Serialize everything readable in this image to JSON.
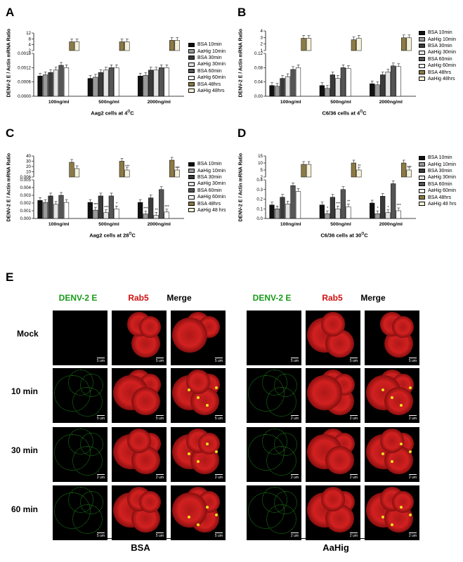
{
  "panels": {
    "A": {
      "letter": "A",
      "ylabel": "DENV-2 E / Actin mRNA Ratio",
      "xlabel": "Aag2 cells at 4",
      "xlabel_sup": "O",
      "xlabel_end": "C",
      "upper_ticks": [
        "12",
        "8",
        "4",
        "2"
      ],
      "lower_ticks": [
        "0.0018",
        "0.0012",
        "0.0006",
        "0.0000"
      ],
      "legend": [
        "BSA 10min",
        "AaHig 10min",
        "BSA 30min",
        "AaHig 30min",
        "BSA 60min",
        "AaHig 60min",
        "BSA 48hrs",
        "AaHig 48hrs"
      ]
    },
    "B": {
      "letter": "B",
      "ylabel": "DENV-2 E / Actin mRNA Ratio",
      "xlabel": "C6/36 cells at 4",
      "xlabel_sup": "O",
      "xlabel_end": "C",
      "upper_ticks": [
        "4",
        "3",
        "2",
        "1"
      ],
      "lower_ticks": [
        "0.12",
        "0.08",
        "0.04",
        "0.00"
      ],
      "legend": [
        "BSA 10min",
        "AaHig 10min",
        "BSA 30min",
        "AaHig 30min",
        "BSA 60min",
        "AaHig 60min",
        "BSA 48hrs",
        "AaHig 48hrs"
      ]
    },
    "C": {
      "letter": "C",
      "ylabel": "DENV-2 E / Actin mRNA Ratio",
      "xlabel": "Aag2 cells at 28",
      "xlabel_sup": "O",
      "xlabel_end": "C",
      "upper_ticks": [
        "40",
        "30",
        "20",
        "10",
        "0.006"
      ],
      "lower_ticks": [
        "0.005",
        "0.004",
        "0.003",
        "0.002",
        "0.001",
        "0.000"
      ],
      "legend": [
        "BSA 10min",
        "AaHig 10min",
        "BSA 30min",
        "AaHig 30min",
        "BSA 60min",
        "AaHig 60min",
        "BSA 48hrs",
        "AaHig 48 hrs"
      ]
    },
    "D": {
      "letter": "D",
      "ylabel": "DENV-2 E / Actin mRNA Ratio",
      "xlabel": "C6/36 cells at 30",
      "xlabel_sup": "O",
      "xlabel_end": "C",
      "upper_ticks": [
        "15",
        "10",
        "5",
        "2"
      ],
      "lower_ticks": [
        "0.4",
        "0.3",
        "0.2",
        "0.1",
        "0.0"
      ],
      "legend": [
        "BSA 10min",
        "AaHig 10min",
        "BSA 30min",
        "AaHig 30min",
        "BSA 60min",
        "AaHig 60min",
        "BSA 48hrs",
        "AaHig 48 hrs"
      ]
    },
    "E": {
      "letter": "E"
    }
  },
  "categories": [
    "100ng/ml",
    "500ng/ml",
    "2000ng/ml"
  ],
  "legend_colors": [
    "#111111",
    "#9a9a9a",
    "#3a3a3a",
    "#e4e4e4",
    "#555555",
    "#ffffff",
    "#8c7a45",
    "#f5f0d8"
  ],
  "chart_data": [
    {
      "type": "bar",
      "panel": "A",
      "categories": [
        "100ng/ml",
        "500ng/ml",
        "2000ng/ml"
      ],
      "series": [
        {
          "name": "BSA 10min",
          "values": [
            0.00085,
            0.00075,
            0.00085
          ]
        },
        {
          "name": "AaHig 10min",
          "values": [
            0.0009,
            0.0008,
            0.00088
          ]
        },
        {
          "name": "BSA 30min",
          "values": [
            0.001,
            0.001,
            0.0011
          ]
        },
        {
          "name": "AaHig 30min",
          "values": [
            0.0011,
            0.0011,
            0.0011
          ]
        },
        {
          "name": "BSA 60min",
          "values": [
            0.0013,
            0.0012,
            0.0012
          ]
        },
        {
          "name": "AaHig 60min",
          "values": [
            0.0012,
            0.0012,
            0.0012
          ]
        },
        {
          "name": "BSA 48hrs",
          "values": [
            6,
            6,
            7
          ]
        },
        {
          "name": "AaHig 48hrs",
          "values": [
            6,
            6,
            7
          ]
        }
      ]
    },
    {
      "type": "bar",
      "panel": "B",
      "categories": [
        "100ng/ml",
        "500ng/ml",
        "2000ng/ml"
      ],
      "series": [
        {
          "name": "BSA 10min",
          "values": [
            0.03,
            0.03,
            0.035
          ]
        },
        {
          "name": "AaHig 10min",
          "values": [
            0.028,
            0.022,
            0.032
          ]
        },
        {
          "name": "BSA 30min",
          "values": [
            0.05,
            0.06,
            0.06
          ]
        },
        {
          "name": "AaHig 30min",
          "values": [
            0.055,
            0.05,
            0.068
          ]
        },
        {
          "name": "BSA 60min",
          "values": [
            0.075,
            0.08,
            0.085
          ]
        },
        {
          "name": "AaHig 60min",
          "values": [
            0.08,
            0.078,
            0.083
          ]
        },
        {
          "name": "BSA 48hrs",
          "values": [
            2.5,
            2.2,
            2.6
          ]
        },
        {
          "name": "AaHig 48hrs",
          "values": [
            2.5,
            2.5,
            2.6
          ]
        }
      ]
    },
    {
      "type": "bar",
      "panel": "C",
      "categories": [
        "100ng/ml",
        "500ng/ml",
        "2000ng/ml"
      ],
      "series": [
        {
          "name": "BSA 10min",
          "values": [
            0.0028,
            0.0025,
            0.0025
          ]
        },
        {
          "name": "AaHig 10min",
          "values": [
            0.0025,
            0.0013,
            0.0007
          ]
        },
        {
          "name": "BSA 30min",
          "values": [
            0.0035,
            0.0035,
            0.0032
          ]
        },
        {
          "name": "AaHig 30min",
          "values": [
            0.0022,
            0.0009,
            0.0005
          ]
        },
        {
          "name": "BSA 60min",
          "values": [
            0.0036,
            0.0035,
            0.0045
          ]
        },
        {
          "name": "AaHig 60min",
          "values": [
            0.0025,
            0.0015,
            0.001
          ]
        },
        {
          "name": "BSA 48hrs",
          "values": [
            28,
            30,
            32
          ]
        },
        {
          "name": "AaHig 48 hrs",
          "values": [
            16,
            10,
            7
          ]
        }
      ],
      "annotations": [
        "*",
        "***",
        "*",
        "***",
        "***",
        "**",
        "***",
        "***",
        "***"
      ]
    },
    {
      "type": "bar",
      "panel": "D",
      "categories": [
        "100ng/ml",
        "500ng/ml",
        "2000ng/ml"
      ],
      "series": [
        {
          "name": "BSA 10min",
          "values": [
            0.14,
            0.14,
            0.16
          ]
        },
        {
          "name": "AaHig 10min",
          "values": [
            0.1,
            0.05,
            0.05
          ]
        },
        {
          "name": "BSA 30min",
          "values": [
            0.22,
            0.22,
            0.23
          ]
        },
        {
          "name": "AaHig 30min",
          "values": [
            0.15,
            0.1,
            0.06
          ]
        },
        {
          "name": "BSA 60min",
          "values": [
            0.34,
            0.3,
            0.36
          ]
        },
        {
          "name": "AaHig 60min",
          "values": [
            0.28,
            0.12,
            0.08
          ]
        },
        {
          "name": "BSA 48hrs",
          "values": [
            9,
            10,
            10
          ]
        },
        {
          "name": "AaHig 48 hrs",
          "values": [
            9,
            4,
            3
          ]
        }
      ],
      "annotations": [
        "*",
        "***",
        "**",
        "**",
        "*",
        "*",
        "***",
        "***"
      ]
    }
  ],
  "microscopy": {
    "col_left": [
      "DENV-2 E",
      "Rab5",
      "Merge"
    ],
    "col_right": [
      "DENV-2 E",
      "Rab5",
      "Merge"
    ],
    "col_colors": [
      "#1a9a1a",
      "#d01010",
      "#000000"
    ],
    "rows": [
      "Mock",
      "10 min",
      "30 min",
      "60 min"
    ],
    "scale_left": [
      "5 um",
      "5 um",
      "2 um",
      "5 um"
    ],
    "scale_right": [
      "5 um",
      "2 um",
      "2 um",
      "2 um"
    ],
    "group_left": "BSA",
    "group_right": "AaHig"
  }
}
